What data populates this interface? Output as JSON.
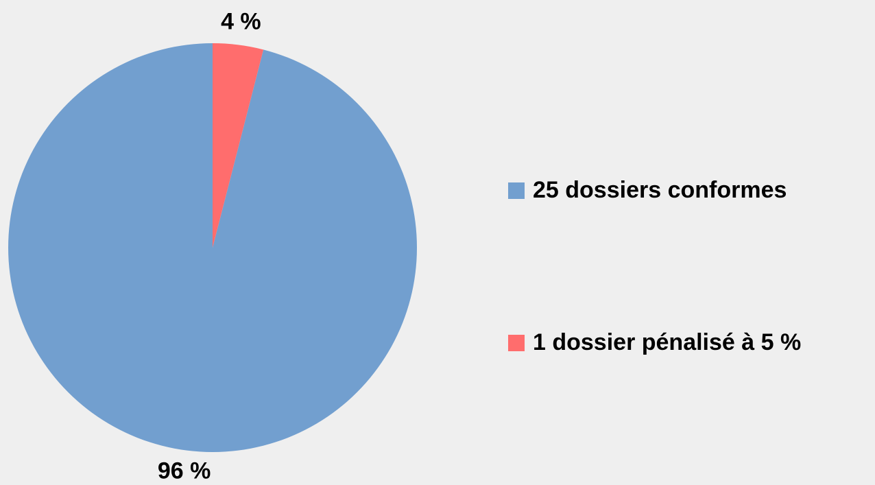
{
  "chart_data": {
    "type": "pie",
    "categories": [
      "25 dossiers conformes",
      "1 dossier pénalisé à 5 %"
    ],
    "values": [
      96,
      4
    ],
    "value_labels": [
      "96 %",
      "4 %"
    ],
    "colors": [
      "#729fcf",
      "#ff6d6d"
    ],
    "legend": "right"
  }
}
